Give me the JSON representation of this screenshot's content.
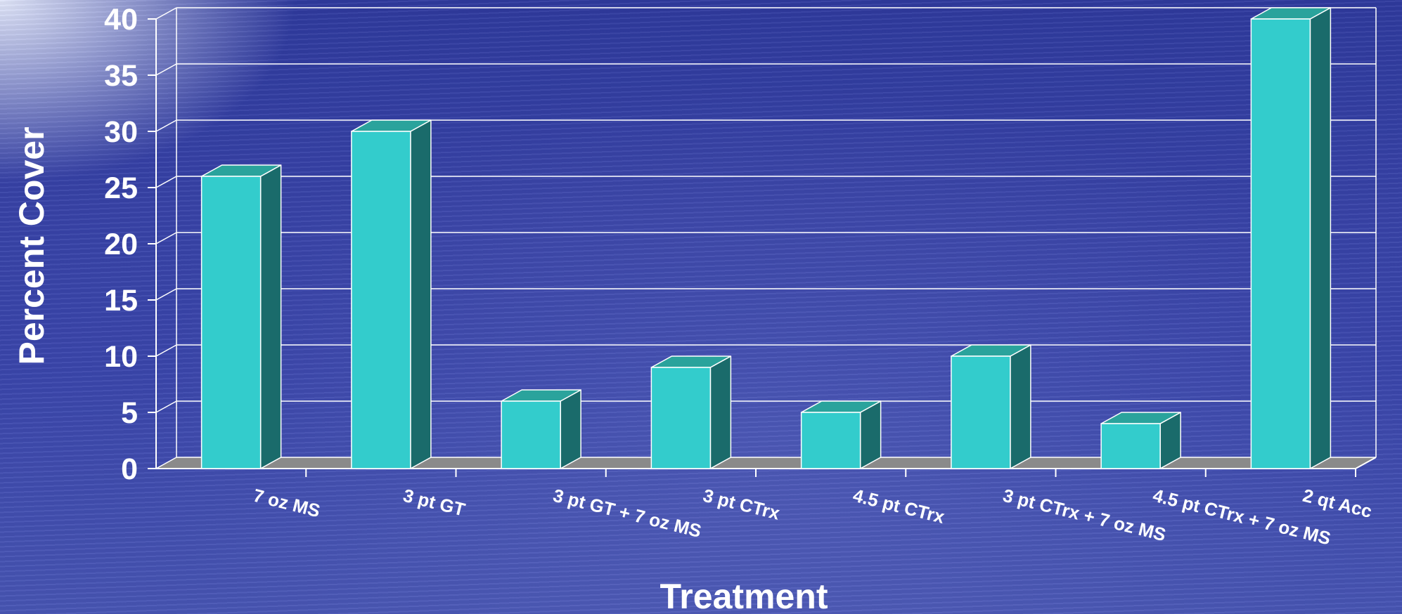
{
  "chart_data": {
    "type": "bar",
    "title": "",
    "xlabel": "Treatment",
    "ylabel": "Percent Cover",
    "categories": [
      "7 oz MS",
      "3 pt GT",
      "3 pt GT + 7 oz MS",
      "3 pt CTrx",
      "4.5 pt CTrx",
      "3 pt CTrx + 7 oz MS",
      "4.5 pt CTrx + 7 oz MS",
      "2 qt Acc"
    ],
    "values": [
      26,
      30,
      6,
      9,
      5,
      10,
      4,
      40
    ],
    "ylim": [
      0,
      40
    ],
    "yticks": [
      "0",
      "5",
      "10",
      "15",
      "20",
      "25",
      "30",
      "35",
      "40"
    ],
    "grid": true,
    "legend": "none",
    "style": "3d",
    "colors": {
      "bar_front": "#33cccc",
      "bar_side": "#1a6b6b",
      "bar_top": "#2aa39c",
      "floor": "#8a8a8a",
      "grid": "#ffffff",
      "text": "#ffffff"
    }
  }
}
